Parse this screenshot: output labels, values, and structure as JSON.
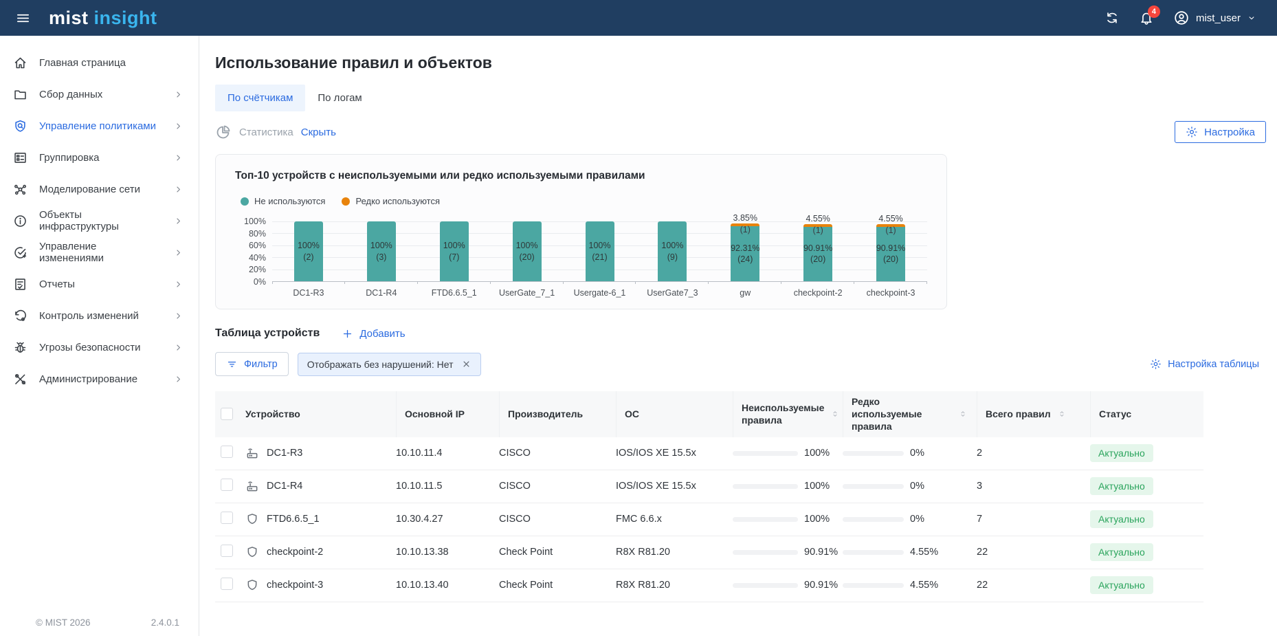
{
  "navbar": {
    "logo_mist": "mist",
    "logo_insight": "insight",
    "notification_count": "4",
    "username": "mist_user"
  },
  "sidebar": {
    "items": [
      {
        "label": "Главная страница",
        "icon": "home",
        "chevron": false,
        "active": false
      },
      {
        "label": "Сбор данных",
        "icon": "folder",
        "chevron": true,
        "active": false
      },
      {
        "label": "Управление политиками",
        "icon": "policy",
        "chevron": true,
        "active": true
      },
      {
        "label": "Группировка",
        "icon": "grid",
        "chevron": true,
        "active": false
      },
      {
        "label": "Моделирование сети",
        "icon": "network",
        "chevron": true,
        "active": false
      },
      {
        "label": "Объекты инфраструктуры",
        "icon": "info",
        "chevron": true,
        "active": false
      },
      {
        "label": "Управление изменениями",
        "icon": "change",
        "chevron": true,
        "active": false
      },
      {
        "label": "Отчеты",
        "icon": "report",
        "chevron": true,
        "active": false
      },
      {
        "label": "Контроль изменений",
        "icon": "history",
        "chevron": true,
        "active": false
      },
      {
        "label": "Угрозы безопасности",
        "icon": "bug",
        "chevron": true,
        "active": false
      },
      {
        "label": "Администрирование",
        "icon": "tools",
        "chevron": true,
        "active": false
      }
    ],
    "footer": {
      "copyright": "© MIST 2026",
      "version": "2.4.0.1"
    }
  },
  "page": {
    "title": "Использование правил и объектов",
    "tabs": [
      {
        "label": "По счётчикам",
        "active": true
      },
      {
        "label": "По логам",
        "active": false
      }
    ],
    "stats_label": "Статистика",
    "hide_link": "Скрыть",
    "settings_button": "Настройка"
  },
  "colors": {
    "accent_blue": "#2B6BE0",
    "navbar_navy": "#203E61",
    "unused_teal": "#4BA7A2",
    "rare_orange": "#E8830C",
    "progress_red": "#F5222D",
    "rare_dot_blue": "#2979FF",
    "status_green": "#2AA45C"
  },
  "chart_data": {
    "type": "bar",
    "stacked": true,
    "title": "Топ-10 устройств с неиспользуемыми или редко используемыми правилами",
    "legend": [
      {
        "label": "Не используются",
        "color": "#4BA7A2"
      },
      {
        "label": "Редко используются",
        "color": "#E8830C"
      }
    ],
    "categories": [
      "DC1-R3",
      "DC1-R4",
      "FTD6.6.5_1",
      "UserGate_7_1",
      "Usergate-6_1",
      "UserGate7_3",
      "gw",
      "checkpoint-2",
      "checkpoint-3"
    ],
    "series": [
      {
        "name": "Не используются",
        "values_pct": [
          100,
          100,
          100,
          100,
          100,
          100,
          92.31,
          90.91,
          90.91
        ],
        "counts": [
          2,
          3,
          7,
          20,
          21,
          9,
          24,
          20,
          20
        ]
      },
      {
        "name": "Редко используются",
        "values_pct": [
          0,
          0,
          0,
          0,
          0,
          0,
          3.85,
          4.55,
          4.55
        ],
        "counts": [
          0,
          0,
          0,
          0,
          0,
          0,
          1,
          1,
          1
        ]
      }
    ],
    "bars": [
      {
        "category": "DC1-R3",
        "unused_pct": 100,
        "unused_label": "100%",
        "unused_count": "(2)",
        "rare_pct": 0,
        "rare_label": "",
        "rare_count": ""
      },
      {
        "category": "DC1-R4",
        "unused_pct": 100,
        "unused_label": "100%",
        "unused_count": "(3)",
        "rare_pct": 0,
        "rare_label": "",
        "rare_count": ""
      },
      {
        "category": "FTD6.6.5_1",
        "unused_pct": 100,
        "unused_label": "100%",
        "unused_count": "(7)",
        "rare_pct": 0,
        "rare_label": "",
        "rare_count": ""
      },
      {
        "category": "UserGate_7_1",
        "unused_pct": 100,
        "unused_label": "100%",
        "unused_count": "(20)",
        "rare_pct": 0,
        "rare_label": "",
        "rare_count": ""
      },
      {
        "category": "Usergate-6_1",
        "unused_pct": 100,
        "unused_label": "100%",
        "unused_count": "(21)",
        "rare_pct": 0,
        "rare_label": "",
        "rare_count": ""
      },
      {
        "category": "UserGate7_3",
        "unused_pct": 100,
        "unused_label": "100%",
        "unused_count": "(9)",
        "rare_pct": 0,
        "rare_label": "",
        "rare_count": ""
      },
      {
        "category": "gw",
        "unused_pct": 92.31,
        "unused_label": "92.31%",
        "unused_count": "(24)",
        "rare_pct": 3.85,
        "rare_label": "3.85%",
        "rare_count": "(1)"
      },
      {
        "category": "checkpoint-2",
        "unused_pct": 90.91,
        "unused_label": "90.91%",
        "unused_count": "(20)",
        "rare_pct": 4.55,
        "rare_label": "4.55%",
        "rare_count": "(1)"
      },
      {
        "category": "checkpoint-3",
        "unused_pct": 90.91,
        "unused_label": "90.91%",
        "unused_count": "(20)",
        "rare_pct": 4.55,
        "rare_label": "4.55%",
        "rare_count": "(1)"
      }
    ],
    "y_ticks": [
      "100%",
      "80%",
      "60%",
      "40%",
      "20%",
      "0%"
    ],
    "ylim": [
      0,
      100
    ],
    "grid": true,
    "legend_position": "top-left"
  },
  "table_section": {
    "title": "Таблица устройств",
    "add_button": "Добавить",
    "filter_button": "Фильтр",
    "filter_chip": "Отображать без нарушений: Нет",
    "table_settings": "Настройка таблицы"
  },
  "table": {
    "columns": [
      "Устройство",
      "Основной IP",
      "Производитель",
      "ОС",
      "Неиспользуемые правила",
      "Редко используемые правила",
      "Всего правил",
      "Статус"
    ],
    "rows": [
      {
        "icon": "router",
        "device": "DC1-R3",
        "ip": "10.10.11.4",
        "vendor": "CISCO",
        "os": "IOS/IOS XE 15.5x",
        "unused_label": "100%",
        "unused_val": 100,
        "rare_label": "0%",
        "rare_val": 0,
        "total": "2",
        "status": "Актуально"
      },
      {
        "icon": "router",
        "device": "DC1-R4",
        "ip": "10.10.11.5",
        "vendor": "CISCO",
        "os": "IOS/IOS XE 15.5x",
        "unused_label": "100%",
        "unused_val": 100,
        "rare_label": "0%",
        "rare_val": 0,
        "total": "3",
        "status": "Актуально"
      },
      {
        "icon": "shield",
        "device": "FTD6.6.5_1",
        "ip": "10.30.4.27",
        "vendor": "CISCO",
        "os": "FMC 6.6.x",
        "unused_label": "100%",
        "unused_val": 100,
        "rare_label": "0%",
        "rare_val": 0,
        "total": "7",
        "status": "Актуально"
      },
      {
        "icon": "shield",
        "device": "checkpoint-2",
        "ip": "10.10.13.38",
        "vendor": "Check Point",
        "os": "R8X R81.20",
        "unused_label": "90.91%",
        "unused_val": 90.91,
        "rare_label": "4.55%",
        "rare_val": 4.55,
        "total": "22",
        "status": "Актуально"
      },
      {
        "icon": "shield",
        "device": "checkpoint-3",
        "ip": "10.10.13.40",
        "vendor": "Check Point",
        "os": "R8X R81.20",
        "unused_label": "90.91%",
        "unused_val": 90.91,
        "rare_label": "4.55%",
        "rare_val": 4.55,
        "total": "22",
        "status": "Актуально"
      }
    ]
  }
}
